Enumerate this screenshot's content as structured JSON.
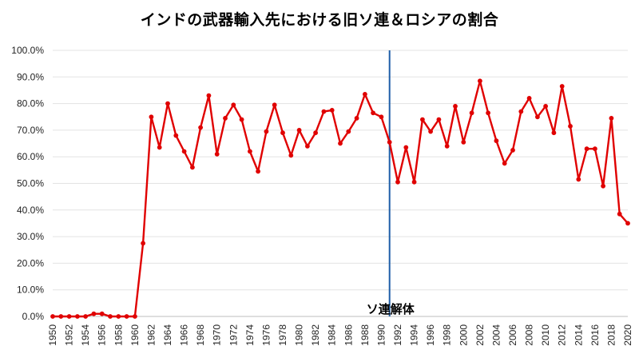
{
  "chart_data": {
    "type": "line",
    "title": "インドの武器輸入先における旧ソ連＆ロシアの割合",
    "xlabel": "",
    "ylabel": "",
    "ylim": [
      0,
      100
    ],
    "y_ticks": [
      "0.0%",
      "10.0%",
      "20.0%",
      "30.0%",
      "40.0%",
      "50.0%",
      "60.0%",
      "70.0%",
      "80.0%",
      "90.0%",
      "100.0%"
    ],
    "x_tick_labels": [
      "1950",
      "1952",
      "1954",
      "1956",
      "1958",
      "1960",
      "1962",
      "1964",
      "1966",
      "1968",
      "1970",
      "1972",
      "1974",
      "1976",
      "1978",
      "1980",
      "1982",
      "1984",
      "1986",
      "1988",
      "1990",
      "1992",
      "1994",
      "1996",
      "1998",
      "2000",
      "2002",
      "2004",
      "2006",
      "2008",
      "2010",
      "2012",
      "2014",
      "2016",
      "2018",
      "2020"
    ],
    "x": [
      1950,
      1951,
      1952,
      1953,
      1954,
      1955,
      1956,
      1957,
      1958,
      1959,
      1960,
      1961,
      1962,
      1963,
      1964,
      1965,
      1966,
      1967,
      1968,
      1969,
      1970,
      1971,
      1972,
      1973,
      1974,
      1975,
      1976,
      1977,
      1978,
      1979,
      1980,
      1981,
      1982,
      1983,
      1984,
      1985,
      1986,
      1987,
      1988,
      1989,
      1990,
      1991,
      1992,
      1993,
      1994,
      1995,
      1996,
      1997,
      1998,
      1999,
      2000,
      2001,
      2002,
      2003,
      2004,
      2005,
      2006,
      2007,
      2008,
      2009,
      2010,
      2011,
      2012,
      2013,
      2014,
      2015,
      2016,
      2017,
      2018,
      2019,
      2020
    ],
    "series": [
      {
        "name": "旧ソ連＆ロシアの割合",
        "color": "#e00000",
        "values": [
          0,
          0,
          0,
          0,
          0,
          1,
          1,
          0,
          0,
          0,
          0,
          27.5,
          75,
          63.5,
          80,
          68,
          62,
          56,
          71,
          83,
          61,
          74.5,
          79.5,
          74,
          62,
          54.5,
          69.5,
          79.5,
          69,
          60.5,
          70,
          64,
          69,
          77,
          77.5,
          65,
          69.5,
          74.5,
          83.5,
          76.5,
          75,
          65.5,
          50.5,
          63.5,
          50.5,
          74,
          69.5,
          74,
          64,
          79,
          65.5,
          76.5,
          88.5,
          76.5,
          66,
          57.5,
          62.5,
          77,
          82,
          75,
          79,
          69,
          86.5,
          71.5,
          51.5,
          63,
          63,
          49,
          74.5,
          38.5,
          35
        ]
      }
    ],
    "marker_line": {
      "year": 1991,
      "color": "#1f5fa8",
      "label": "ソ連解体"
    }
  }
}
